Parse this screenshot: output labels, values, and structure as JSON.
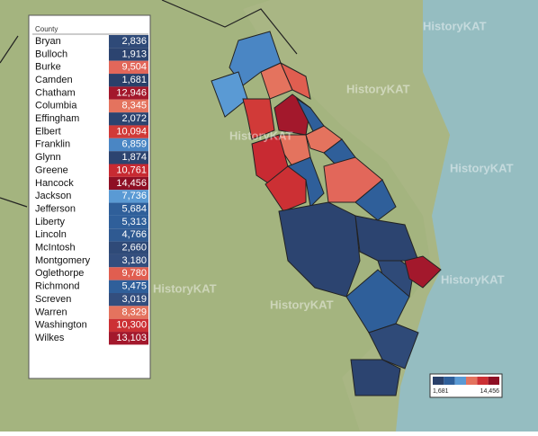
{
  "table": {
    "header": "County",
    "rows": [
      {
        "county": "Bryan",
        "value": "2,836",
        "color": "#2f4a78"
      },
      {
        "county": "Bulloch",
        "value": "1,913",
        "color": "#2c4470"
      },
      {
        "county": "Burke",
        "value": "9,504",
        "color": "#e2675a"
      },
      {
        "county": "Camden",
        "value": "1,681",
        "color": "#2a406a"
      },
      {
        "county": "Chatham",
        "value": "12,946",
        "color": "#a3182c"
      },
      {
        "county": "Columbia",
        "value": "8,345",
        "color": "#e4735e"
      },
      {
        "county": "Effingham",
        "value": "2,072",
        "color": "#2c4470"
      },
      {
        "county": "Elbert",
        "value": "10,094",
        "color": "#d13a38"
      },
      {
        "county": "Franklin",
        "value": "6,859",
        "color": "#4a86c4"
      },
      {
        "county": "Glynn",
        "value": "1,874",
        "color": "#2c4470"
      },
      {
        "county": "Greene",
        "value": "10,761",
        "color": "#c82a32"
      },
      {
        "county": "Hancock",
        "value": "14,456",
        "color": "#8e0f24"
      },
      {
        "county": "Jackson",
        "value": "7,736",
        "color": "#5a9ad4"
      },
      {
        "county": "Jefferson",
        "value": "5,684",
        "color": "#2f5f9a"
      },
      {
        "county": "Liberty",
        "value": "5,313",
        "color": "#2f5f9a"
      },
      {
        "county": "Lincoln",
        "value": "4,766",
        "color": "#2f5a92"
      },
      {
        "county": "McIntosh",
        "value": "2,660",
        "color": "#2f4a78"
      },
      {
        "county": "Montgomery",
        "value": "3,180",
        "color": "#334e7e"
      },
      {
        "county": "Oglethorpe",
        "value": "9,780",
        "color": "#e05e50"
      },
      {
        "county": "Richmond",
        "value": "5,475",
        "color": "#2f5f9a"
      },
      {
        "county": "Screven",
        "value": "3,019",
        "color": "#334e7e"
      },
      {
        "county": "Warren",
        "value": "8,329",
        "color": "#e4735e"
      },
      {
        "county": "Washington",
        "value": "10,300",
        "color": "#cc3034"
      },
      {
        "county": "Wilkes",
        "value": "13,103",
        "color": "#a3182c"
      }
    ]
  },
  "legend": {
    "colors": [
      "#2a406a",
      "#2f5f9a",
      "#5a9ad4",
      "#e4735e",
      "#cc3034",
      "#8e0f24"
    ],
    "min": "1,681",
    "max": "14,456"
  },
  "watermark": "HistoryKAT"
}
